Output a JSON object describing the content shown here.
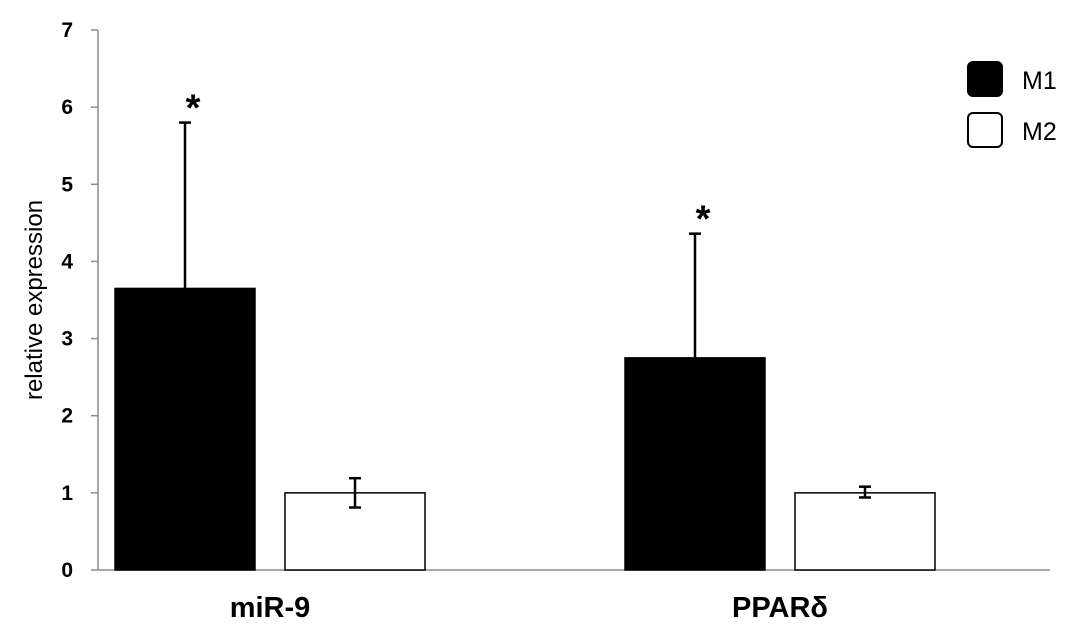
{
  "chart_data": {
    "type": "bar",
    "categories": [
      "miR-9",
      "PPARδ"
    ],
    "series": [
      {
        "name": "M1",
        "color": "#000000",
        "values": [
          3.65,
          2.75
        ],
        "error_upper": [
          5.8,
          4.36
        ],
        "error_lower": [
          3.65,
          2.75
        ],
        "annotations": [
          "*",
          "*"
        ]
      },
      {
        "name": "M2",
        "color": "#ffffff",
        "values": [
          1.0,
          1.0
        ],
        "error_upper": [
          1.19,
          1.08
        ],
        "error_lower": [
          0.81,
          0.94
        ],
        "annotations": [
          "",
          ""
        ]
      }
    ],
    "title": "",
    "xlabel": "",
    "ylabel": "relative expression",
    "ylim": [
      0,
      7
    ],
    "yticks": [
      "0",
      "1",
      "2",
      "3",
      "4",
      "5",
      "6",
      "7"
    ],
    "grid": false,
    "legend_position": "top-right"
  }
}
